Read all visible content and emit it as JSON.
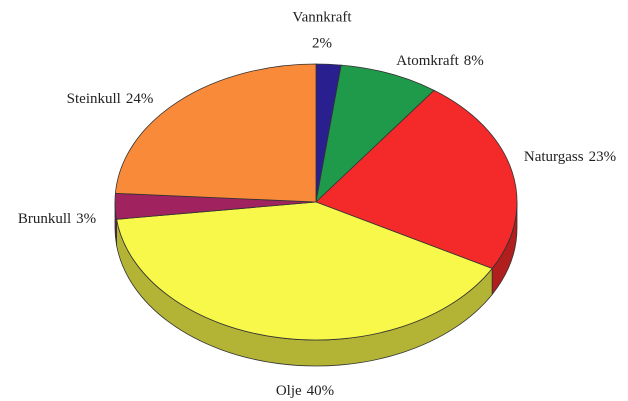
{
  "chart_data": {
    "type": "pie",
    "categories": [
      "Vannkraft",
      "Atomkraft",
      "Naturgass",
      "Olje",
      "Brunkull",
      "Steinkull"
    ],
    "values": [
      2,
      8,
      23,
      40,
      3,
      24
    ],
    "value_labels": [
      "2%",
      "8%",
      "23%",
      "40%",
      "3%",
      "24%"
    ],
    "colors": [
      "#2a1f8f",
      "#1f9a4a",
      "#f42a2a",
      "#f8f84a",
      "#a0225e",
      "#f98a3a"
    ]
  }
}
